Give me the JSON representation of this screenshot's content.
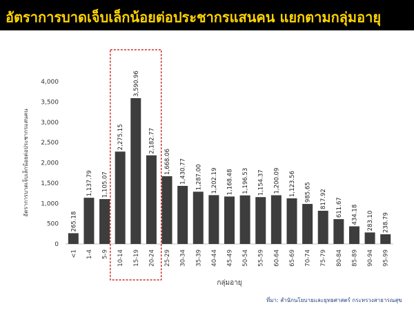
{
  "page": {
    "title": "อัตราการบาดเจ็บเล็กน้อยต่อประชากรแสนคน แยกตามกลุ่มอายุ",
    "source": "ที่มา: สำนักนโยบายและยุทธศาสตร์ กระทรวงสาธารณสุข"
  },
  "colors": {
    "title_bg": "#000000",
    "title_text": "#ffd400",
    "bar": "#3d3d3d",
    "highlight_box": "#c00000",
    "source_text": "#1f3f7a"
  },
  "chart_data": {
    "type": "bar",
    "title": "",
    "xlabel": "กลุ่มอายุ",
    "ylabel": "อัตราการบาดเจ็บเล็กน้อยต่อประชากรแสนคน",
    "ylim": [
      0,
      4000
    ],
    "yticks": [
      "0",
      "500",
      "1,000",
      "1,500",
      "2,000",
      "2,500",
      "3,000",
      "3,500",
      "4,000"
    ],
    "grid": false,
    "legend": "none",
    "categories": [
      "<1",
      "1-4",
      "5-9",
      "10-14",
      "15-19",
      "20-24",
      "25-29",
      "30-34",
      "35-39",
      "40-44",
      "45-49",
      "50-54",
      "55-59",
      "60-64",
      "65-69",
      "70-74",
      "75-79",
      "80-84",
      "85-89",
      "90-94",
      "95-99"
    ],
    "values": [
      265.18,
      1137.79,
      1105.07,
      2275.15,
      3590.96,
      2182.77,
      1668.06,
      1430.77,
      1287.0,
      1202.19,
      1168.48,
      1196.53,
      1154.37,
      1200.09,
      1123.56,
      985.65,
      817.92,
      611.67,
      434.18,
      283.1,
      238.79
    ],
    "value_labels": [
      "265.18",
      "1,137.79",
      "1,105.07",
      "2,275.15",
      "3,590.96",
      "2,182.77",
      "1,668.06",
      "1,430.77",
      "1,287.00",
      "1,202.19",
      "1,168.48",
      "1,196.53",
      "1,154.37",
      "1,200.09",
      "1,123.56",
      "985.65",
      "817.92",
      "611.67",
      "434.18",
      "283.10",
      "238.79"
    ],
    "highlight_categories": [
      "10-14",
      "15-19",
      "20-24"
    ]
  }
}
